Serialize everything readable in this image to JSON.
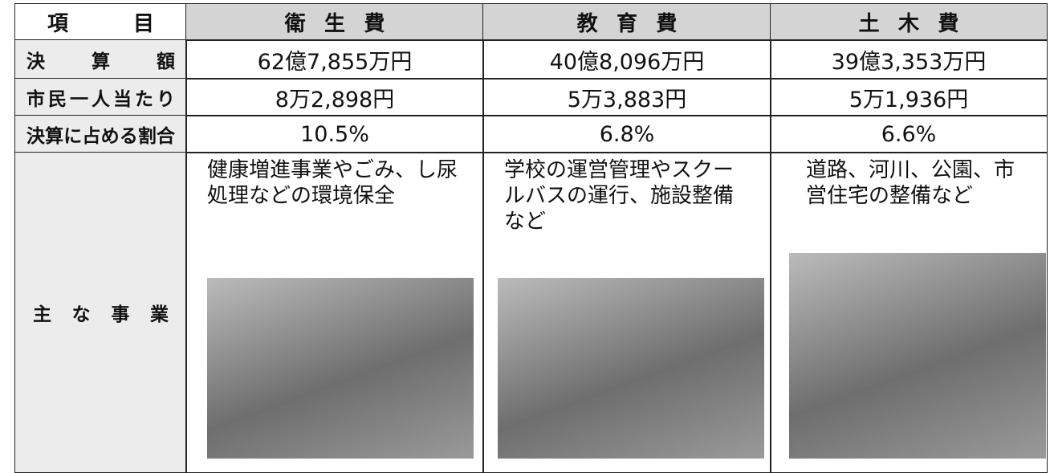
{
  "table": {
    "header": [
      "項目",
      "衛生費",
      "教育費",
      "土木費"
    ],
    "rows": [
      [
        "決算額",
        "62億7,855万円",
        "40億8,096万円",
        "39億3,353万円"
      ],
      [
        "市民一人当たり",
        "8万2,898円",
        "5万3,883円",
        "5万1,936円"
      ],
      [
        "決算に占める割合",
        "10.5%",
        "6.8%",
        "6.6%"
      ],
      [
        "主な事業",
        "健康増進事業やごみ、し尿処理などの環境保全",
        "学校の運営管理やスクールバスの運行、施設整備など",
        "道路、河川、公園、市営住宅の整備など"
      ]
    ]
  }
}
